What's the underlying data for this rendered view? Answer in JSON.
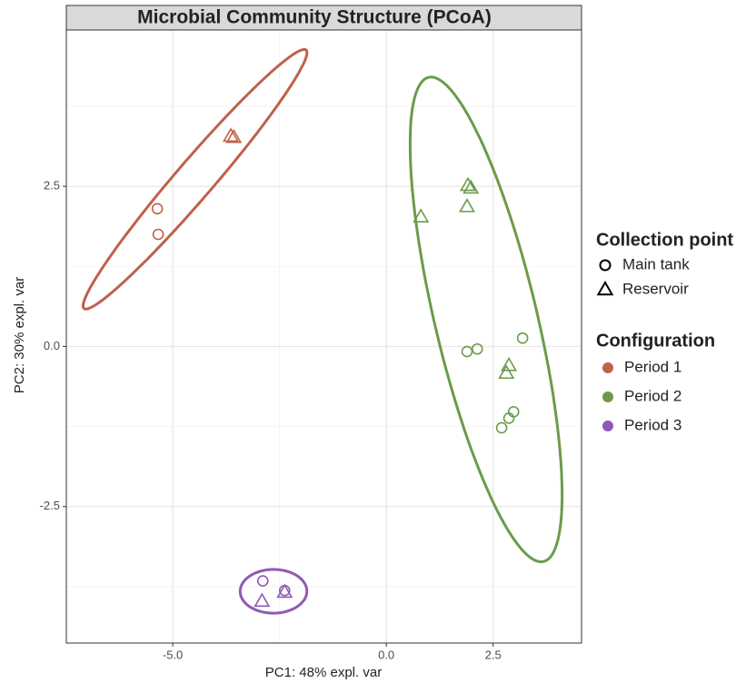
{
  "chart_data": {
    "type": "scatter",
    "title": "Microbial Community Structure (PCoA)",
    "x_label": "PC1: 48% expl. var",
    "y_label": "PC2: 30% expl. var",
    "xlim": [
      -7.49,
      4.57
    ],
    "ylim": [
      -4.63,
      4.94
    ],
    "xticks": [
      {
        "value": -5,
        "label": "-5.0"
      },
      {
        "value": 0,
        "label": "0.0"
      },
      {
        "value": 2.5,
        "label": "2.5"
      }
    ],
    "yticks": [
      {
        "value": -2.5,
        "label": "-2.5"
      },
      {
        "value": 0,
        "label": "0.0"
      },
      {
        "value": 2.5,
        "label": "2.5"
      }
    ],
    "grid": true,
    "ellipses": true,
    "shape_legend_title": "Collection point",
    "shapes": [
      {
        "label": "Main tank",
        "shape": "circle"
      },
      {
        "label": "Reservoir",
        "shape": "triangle"
      }
    ],
    "color_legend_title": "Configuration",
    "series": [
      {
        "name": "Period 1",
        "color": "#c0614a",
        "x": [
          -5.36,
          -5.34,
          -3.64,
          -3.57
        ],
        "y": [
          2.15,
          1.75,
          3.28,
          3.26
        ],
        "collection": [
          "Main tank",
          "Main tank",
          "Reservoir",
          "Reservoir"
        ]
      },
      {
        "name": "Period 2",
        "color": "#6b9b4b",
        "x": [
          0.81,
          1.91,
          1.98,
          1.89,
          2.87,
          2.81,
          1.89,
          2.13,
          3.19,
          2.7,
          2.87,
          2.98
        ],
        "y": [
          2.02,
          2.51,
          2.47,
          2.18,
          -0.3,
          -0.42,
          -0.08,
          -0.04,
          0.13,
          -1.27,
          -1.12,
          -1.02
        ],
        "collection": [
          "Reservoir",
          "Reservoir",
          "Reservoir",
          "Reservoir",
          "Reservoir",
          "Reservoir",
          "Main tank",
          "Main tank",
          "Main tank",
          "Main tank",
          "Main tank",
          "Main tank"
        ]
      },
      {
        "name": "Period 3",
        "color": "#8e5ab5",
        "x": [
          -2.89,
          -2.38,
          -2.91,
          -2.38
        ],
        "y": [
          -3.66,
          -3.81,
          -3.98,
          -3.84
        ],
        "collection": [
          "Main tank",
          "Main tank",
          "Reservoir",
          "Reservoir"
        ]
      }
    ]
  }
}
